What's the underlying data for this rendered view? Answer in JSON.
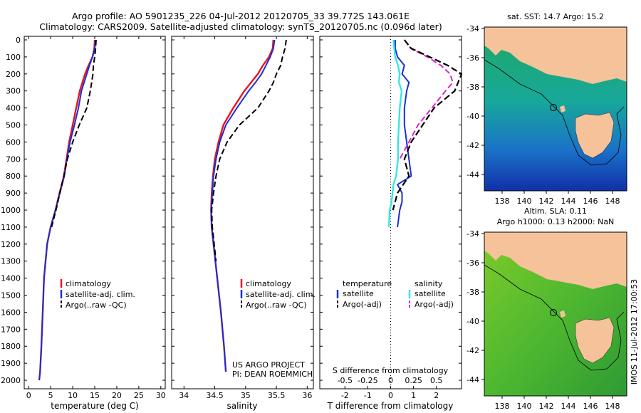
{
  "title_line1": "Argo profile: AO 5901235_226 04-Jul-2012 20120705_33 39.772S 143.061E",
  "title_line2": "Climatology: CARS2009. Satellite-adjusted climatology: synTS_20120705.nc (0.096d later)",
  "pressure_ticks": [
    "0",
    "100",
    "200",
    "300",
    "400",
    "500",
    "600",
    "700",
    "800",
    "900",
    "1000",
    "1100",
    "1200",
    "1300",
    "1400",
    "1500",
    "1600",
    "1700",
    "1800",
    "1900",
    "2000"
  ],
  "temp_panel": {
    "xlabel": "temperature (deg C)",
    "xticks": [
      "0",
      "5",
      "10",
      "15",
      "20",
      "25",
      "30"
    ],
    "legend": [
      "climatology",
      "satellite-adj. clim.",
      "Argo(..raw -QC)"
    ]
  },
  "sal_panel": {
    "xlabel": "salinity",
    "xticks": [
      "34",
      "34.5",
      "35",
      "35.5",
      "36"
    ],
    "legend": [
      "climatology",
      "satellite-adj. clim.",
      "Argo(..raw -QC)"
    ],
    "note_line1": "US ARGO PROJECT",
    "note_line2": "PI: DEAN ROEMMICH"
  },
  "diff_panel": {
    "top_label": "S difference from climatology",
    "s_ticks": [
      "-0.5",
      "-0.25",
      "0",
      "0.25",
      "0.5"
    ],
    "t_ticks": [
      "-2",
      "-1",
      "0",
      "1",
      "2"
    ],
    "xlabel": "T difference from climatology",
    "legend_temp_title": "temperature",
    "legend_sal_title": "salinity",
    "legend_temp": [
      "satellite",
      "Argo(-adj)"
    ],
    "legend_sal": [
      "satellite",
      "Argo(-adj)"
    ]
  },
  "map_top": {
    "title": "sat. SST: 14.7  Argo: 15.2",
    "yticks": [
      "-34",
      "-36",
      "-38",
      "-40",
      "-42",
      "-44"
    ],
    "xticks": [
      "138",
      "140",
      "142",
      "144",
      "146",
      "148"
    ]
  },
  "map_bottom": {
    "title_line1": "Altim. SLA: 0.11",
    "title_line2": "Argo h1000: 0.13  h2000: NaN",
    "yticks": [
      "-34",
      "-36",
      "-38",
      "-40",
      "-42",
      "-44"
    ],
    "xticks": [
      "138",
      "140",
      "142",
      "144",
      "146",
      "148"
    ]
  },
  "side_stamp": "IMOS 11-Jul-2012 17:00:53",
  "colors": {
    "climatology": "#e8141e",
    "satellite": "#1a2fd6",
    "argo": "#000000",
    "sal_sat": "#37e6e6",
    "sal_argo": "#e020d8",
    "land": "#f5c29a"
  },
  "chart_data": [
    {
      "type": "line",
      "panel": "temperature",
      "xlabel": "temperature (deg C)",
      "ylabel": "pressure",
      "xlim": [
        -1,
        31
      ],
      "ylim": [
        2050,
        0
      ],
      "series": [
        {
          "name": "climatology",
          "x": [
            15,
            14.9,
            14.5,
            13.6,
            12.8,
            12.2,
            11.6,
            10.8,
            10,
            9.2,
            8.6,
            8,
            7,
            6.1,
            5,
            4.2,
            3.5,
            3.2,
            2.9,
            2.6,
            2.4
          ],
          "y": [
            0,
            50,
            100,
            150,
            200,
            250,
            300,
            400,
            500,
            600,
            700,
            800,
            900,
            1000,
            1100,
            1200,
            1400,
            1600,
            1800,
            1950,
            2000
          ]
        },
        {
          "name": "satellite-adj. clim.",
          "x": [
            15.2,
            15,
            14.5,
            13.8,
            13.2,
            12.6,
            12,
            11.3,
            10.4,
            9.4,
            8.7,
            8.1,
            7.1,
            6.1,
            5,
            4.2,
            3.5,
            3.2,
            2.9,
            2.6,
            2.4
          ],
          "y": [
            0,
            50,
            100,
            150,
            200,
            250,
            300,
            400,
            500,
            600,
            700,
            800,
            900,
            1000,
            1100,
            1200,
            1400,
            1600,
            1800,
            1950,
            2000
          ]
        },
        {
          "name": "Argo(..raw -QC)",
          "x": [
            15.3,
            15.2,
            15,
            14.7,
            14.6,
            14.3,
            14,
            13.2,
            11.5,
            10,
            8.8,
            8,
            7.1,
            6.2,
            5.2
          ],
          "y": [
            0,
            50,
            100,
            150,
            200,
            250,
            300,
            400,
            500,
            600,
            700,
            800,
            900,
            1000,
            1100
          ]
        }
      ]
    },
    {
      "type": "line",
      "panel": "salinity",
      "xlabel": "salinity",
      "ylabel": "pressure",
      "xlim": [
        33.8,
        36.1
      ],
      "ylim": [
        2050,
        0
      ],
      "series": [
        {
          "name": "climatology",
          "x": [
            35.45,
            35.44,
            35.38,
            35.28,
            35.2,
            35.09,
            34.98,
            34.8,
            34.64,
            34.56,
            34.5,
            34.47,
            34.45,
            34.44,
            34.45,
            34.48,
            34.54,
            34.6,
            34.65,
            34.68
          ],
          "y": [
            0,
            50,
            100,
            150,
            200,
            250,
            300,
            400,
            500,
            600,
            700,
            800,
            900,
            1000,
            1100,
            1200,
            1400,
            1600,
            1800,
            1950
          ]
        },
        {
          "name": "satellite-adj. clim.",
          "x": [
            35.47,
            35.45,
            35.4,
            35.33,
            35.26,
            35.16,
            35.05,
            34.86,
            34.68,
            34.58,
            34.52,
            34.48,
            34.46,
            34.44,
            34.45,
            34.48,
            34.54,
            34.6,
            34.65,
            34.68
          ],
          "y": [
            0,
            50,
            100,
            150,
            200,
            250,
            300,
            400,
            500,
            600,
            700,
            800,
            900,
            1000,
            1100,
            1200,
            1400,
            1600,
            1800,
            1950
          ]
        },
        {
          "name": "Argo(..raw -QC)",
          "x": [
            35.66,
            35.64,
            35.6,
            35.57,
            35.5,
            35.45,
            35.38,
            35.2,
            34.9,
            34.7,
            34.58,
            34.52,
            34.48,
            34.45,
            34.46,
            34.49,
            34.52
          ],
          "y": [
            0,
            50,
            100,
            150,
            200,
            250,
            300,
            400,
            500,
            600,
            700,
            800,
            900,
            1000,
            1100,
            1200,
            1300
          ]
        }
      ]
    },
    {
      "type": "line",
      "panel": "difference",
      "xlabel": "T difference from climatology",
      "ylabel": "pressure",
      "xlim": [
        -3.1,
        3.1
      ],
      "ylim": [
        2050,
        0
      ],
      "series": [
        {
          "name": "temperature satellite",
          "x": [
            0.2,
            0.2,
            0.3,
            0.6,
            0.5,
            0.8,
            0.7,
            0.6,
            0.6,
            0.7,
            0.8,
            0.9,
            0.3,
            0.5,
            0.5,
            0.4,
            0.3
          ],
          "y": [
            0,
            50,
            100,
            150,
            200,
            250,
            300,
            400,
            500,
            600,
            700,
            800,
            850,
            900,
            950,
            1000,
            1100
          ]
        },
        {
          "name": "salinity satellite",
          "x": [
            0.03,
            0.04,
            0.05,
            0.08,
            0.1,
            0.09,
            0.12,
            0.1,
            0.09,
            0.08,
            0.08,
            0.06,
            0.03,
            0.02,
            0.01,
            -0.01,
            -0.02
          ],
          "y": [
            0,
            50,
            100,
            150,
            200,
            250,
            300,
            400,
            500,
            600,
            700,
            800,
            850,
            900,
            950,
            1000,
            1100
          ]
        },
        {
          "name": "salinity Argo(-adj)",
          "x": [
            0.15,
            0.22,
            0.4,
            0.55,
            0.65,
            0.68,
            0.6,
            0.45,
            0.3,
            0.2,
            0.1
          ],
          "y": [
            0,
            50,
            100,
            150,
            200,
            250,
            300,
            400,
            500,
            600,
            700
          ]
        },
        {
          "name": "temperature Argo(-adj)",
          "x": [
            0.6,
            0.9,
            1.7,
            2.5,
            3.1,
            2.8,
            1.9,
            0.9,
            0.6,
            0.8,
            0.3,
            0.1
          ],
          "y": [
            0,
            50,
            100,
            150,
            200,
            300,
            400,
            600,
            700,
            800,
            900,
            1000
          ]
        }
      ]
    }
  ]
}
